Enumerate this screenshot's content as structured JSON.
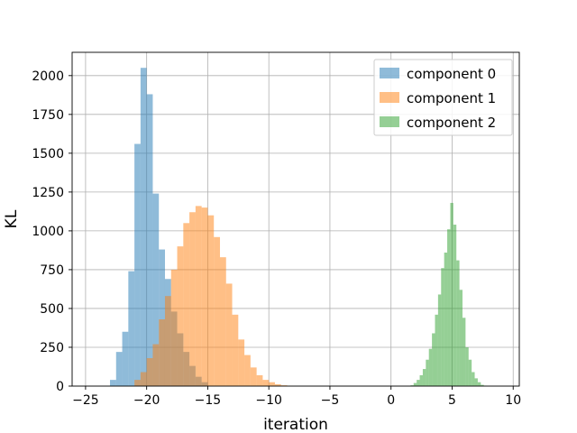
{
  "chart_data": {
    "type": "histogram",
    "title": "",
    "xlabel": "iteration",
    "ylabel": "KL",
    "xlim": [
      -26.1,
      10.5
    ],
    "ylim": [
      0,
      2150
    ],
    "xticks": [
      -25,
      -20,
      -15,
      -10,
      -5,
      0,
      5,
      10
    ],
    "xtick_labels": [
      "−25",
      "−20",
      "−15",
      "−10",
      "−5",
      "0",
      "5",
      "10"
    ],
    "yticks": [
      0,
      250,
      500,
      750,
      1000,
      1250,
      1500,
      1750,
      2000
    ],
    "ytick_labels": [
      "0",
      "250",
      "500",
      "750",
      "1000",
      "1250",
      "1500",
      "1750",
      "2000"
    ],
    "grid": true,
    "legend_position": "top-right",
    "alpha": 0.5,
    "series": [
      {
        "name": "component 0",
        "color": "#1f77b4",
        "bin_edges": [
          -23.0,
          -22.5,
          -22.0,
          -21.5,
          -21.0,
          -20.5,
          -20.0,
          -19.5,
          -19.0,
          -18.5,
          -18.0,
          -17.5,
          -17.0,
          -16.5,
          -16.0,
          -15.5,
          -15.0
        ],
        "counts": [
          40,
          220,
          350,
          740,
          1560,
          2050,
          1880,
          1240,
          880,
          690,
          480,
          340,
          220,
          130,
          60,
          25
        ]
      },
      {
        "name": "component 1",
        "color": "#ff7f0e",
        "bin_edges": [
          -21.0,
          -20.5,
          -20.0,
          -19.5,
          -19.0,
          -18.5,
          -18.0,
          -17.5,
          -17.0,
          -16.5,
          -16.0,
          -15.5,
          -15.0,
          -14.5,
          -14.0,
          -13.5,
          -13.0,
          -12.5,
          -12.0,
          -11.5,
          -11.0,
          -10.5,
          -10.0,
          -9.5,
          -9.0,
          -8.5,
          -8.0
        ],
        "counts": [
          40,
          90,
          180,
          270,
          430,
          580,
          750,
          900,
          1050,
          1120,
          1160,
          1150,
          1100,
          960,
          830,
          660,
          460,
          300,
          200,
          120,
          70,
          40,
          25,
          12,
          5,
          2
        ]
      },
      {
        "name": "component 2",
        "color": "#2ca02c",
        "bin_edges": [
          1.6,
          1.85,
          2.1,
          2.35,
          2.6,
          2.85,
          3.1,
          3.35,
          3.6,
          3.85,
          4.1,
          4.35,
          4.6,
          4.85,
          5.1,
          5.35,
          5.6,
          5.85,
          6.1,
          6.35,
          6.6,
          6.85,
          7.1,
          7.35,
          7.6,
          7.85
        ],
        "counts": [
          5,
          20,
          40,
          70,
          110,
          170,
          240,
          340,
          460,
          590,
          760,
          860,
          1010,
          1180,
          1040,
          810,
          620,
          440,
          250,
          170,
          90,
          50,
          25,
          8,
          3
        ]
      }
    ]
  }
}
